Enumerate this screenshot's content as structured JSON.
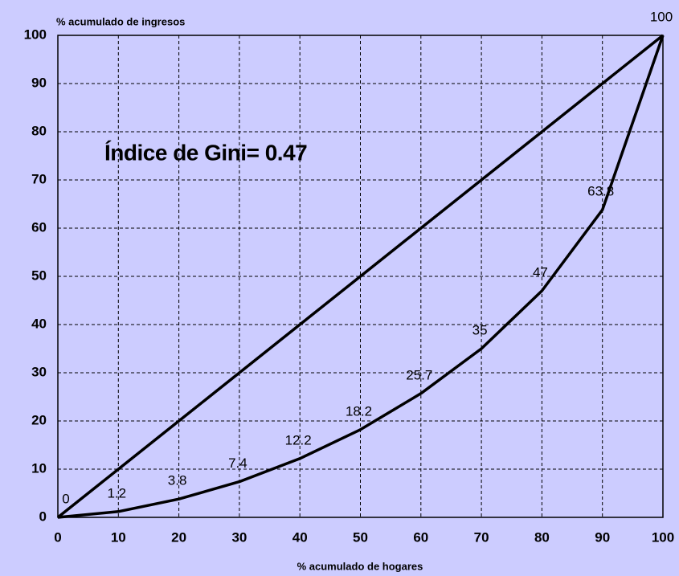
{
  "chart_data": {
    "type": "line",
    "y_label": "% acumulado de ingresos",
    "x_label": "% acumulado de hogares",
    "annotation": "Índice de Gini= 0.47",
    "x": [
      0,
      10,
      20,
      30,
      40,
      50,
      60,
      70,
      80,
      90,
      100
    ],
    "series": [
      {
        "color": "#000000",
        "values": [
          0,
          10,
          20,
          30,
          40,
          50,
          60,
          70,
          80,
          90,
          100
        ],
        "labels": false
      },
      {
        "color": "#000000",
        "values": [
          0,
          1.2,
          3.8,
          7.4,
          12.2,
          18.2,
          25.7,
          35,
          47,
          63.8,
          100
        ],
        "labels": true
      }
    ],
    "xlim": [
      0,
      100
    ],
    "ylim": [
      0,
      100
    ],
    "xticks": [
      0,
      10,
      20,
      30,
      40,
      50,
      60,
      70,
      80,
      90,
      100
    ],
    "yticks": [
      0,
      10,
      20,
      30,
      40,
      50,
      60,
      70,
      80,
      90,
      100
    ],
    "grid": true
  }
}
